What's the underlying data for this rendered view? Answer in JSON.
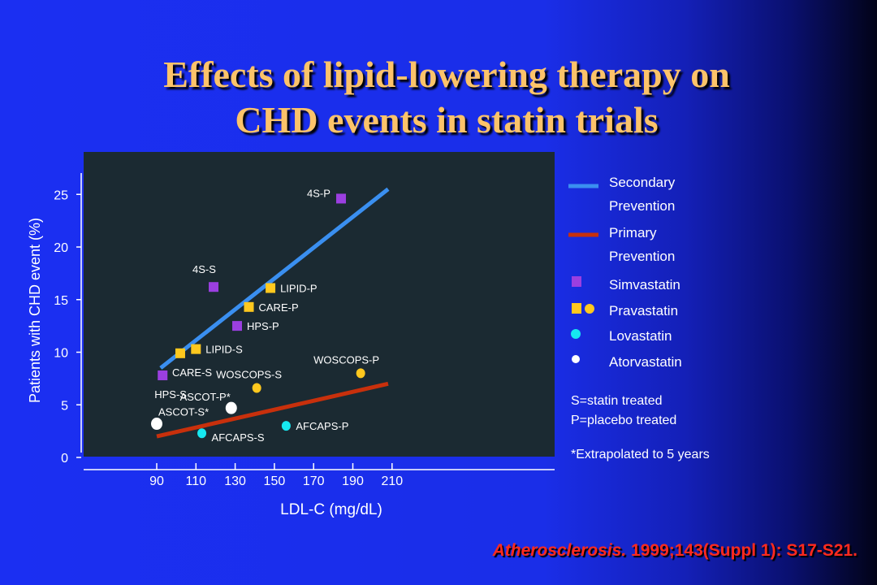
{
  "slide": {
    "title_lines": [
      "Effects of lipid-lowering therapy on",
      "CHD events in statin trials"
    ],
    "citation_journal": "Atherosclerosis.",
    "citation_rest": " 1999;143(Suppl 1): S17-S21."
  },
  "legend": {
    "secondary_line1": "Secondary",
    "secondary_line2": "Prevention",
    "primary_line1": "Primary",
    "primary_line2": "Prevention",
    "simvastatin": "Simvastatin",
    "pravastatin": "Pravastatin",
    "lovastatin": "Lovastatin",
    "atorvastatin": "Atorvastatin"
  },
  "notes": {
    "statin": "S=statin treated",
    "placebo": "P=placebo treated",
    "extrapolated": "*Extrapolated to 5 years"
  },
  "colors": {
    "secondary_line": "#3a8ff0",
    "primary_line": "#c8300c",
    "simvastatin": "#9b3fe0",
    "pravastatin": "#ffc81e",
    "lovastatin": "#16e8f0",
    "atorvastatin": "#ffffff",
    "plot_bg": "#1b2a32"
  },
  "chart_data": {
    "type": "scatter",
    "xlabel": "LDL-C (mg/dL)",
    "ylabel": "Patients with CHD event (%)",
    "xlim": [
      80,
      210
    ],
    "ylim": [
      0,
      27
    ],
    "x_ticks": [
      90,
      110,
      130,
      150,
      170,
      190,
      210
    ],
    "y_ticks": [
      0,
      5,
      10,
      15,
      20,
      25
    ],
    "grid": false,
    "legend_position": "right",
    "lines": [
      {
        "name": "Secondary Prevention",
        "x": [
          92,
          208
        ],
        "y": [
          8.5,
          25.5
        ],
        "color": "#3a8ff0"
      },
      {
        "name": "Primary Prevention",
        "x": [
          90,
          208
        ],
        "y": [
          2.0,
          7.0
        ],
        "color": "#c8300c"
      }
    ],
    "points": [
      {
        "label": "4S-P",
        "x": 184,
        "y": 24.6,
        "drug": "simvastatin",
        "shape": "square",
        "color": "#9b3fe0",
        "label_side": "left-above"
      },
      {
        "label": "4S-S",
        "x": 119,
        "y": 16.2,
        "drug": "simvastatin",
        "shape": "square",
        "color": "#9b3fe0",
        "label_side": "left-above"
      },
      {
        "label": "HPS-P",
        "x": 131,
        "y": 12.5,
        "drug": "simvastatin",
        "shape": "square",
        "color": "#9b3fe0",
        "label_side": "right"
      },
      {
        "label": "HPS-S",
        "x": 93,
        "y": 7.8,
        "drug": "simvastatin",
        "shape": "square",
        "color": "#9b3fe0",
        "label_side": "below"
      },
      {
        "label": "LIPID-P",
        "x": 148,
        "y": 16.1,
        "drug": "pravastatin",
        "shape": "square",
        "color": "#ffc81e",
        "label_side": "right"
      },
      {
        "label": "CARE-P",
        "x": 137,
        "y": 14.3,
        "drug": "pravastatin",
        "shape": "square",
        "color": "#ffc81e",
        "label_side": "right"
      },
      {
        "label": "LIPID-S",
        "x": 110,
        "y": 10.3,
        "drug": "pravastatin",
        "shape": "square",
        "color": "#ffc81e",
        "label_side": "right"
      },
      {
        "label": "CARE-S",
        "x": 102,
        "y": 9.9,
        "drug": "pravastatin",
        "shape": "square",
        "color": "#ffc81e",
        "label_side": "below"
      },
      {
        "label": "WOSCOPS-P",
        "x": 194,
        "y": 8.0,
        "drug": "pravastatin",
        "shape": "circle",
        "color": "#ffc81e",
        "label_side": "above"
      },
      {
        "label": "WOSCOPS-S",
        "x": 141,
        "y": 6.6,
        "drug": "pravastatin",
        "shape": "circle",
        "color": "#ffc81e",
        "label_side": "above"
      },
      {
        "label": "AFCAPS-P",
        "x": 156,
        "y": 3.0,
        "drug": "lovastatin",
        "shape": "circle",
        "color": "#16e8f0",
        "label_side": "right"
      },
      {
        "label": "AFCAPS-S",
        "x": 113,
        "y": 2.3,
        "drug": "lovastatin",
        "shape": "circle",
        "color": "#16e8f0",
        "label_side": "right-below"
      },
      {
        "label": "ASCOT-P*",
        "x": 128,
        "y": 4.7,
        "drug": "atorvastatin",
        "shape": "circle",
        "color": "#ffffff",
        "label_side": "left-above"
      },
      {
        "label": "ASCOT-S*",
        "x": 90,
        "y": 3.2,
        "drug": "atorvastatin",
        "shape": "circle",
        "color": "#ffffff",
        "label_side": "right-above"
      }
    ]
  }
}
